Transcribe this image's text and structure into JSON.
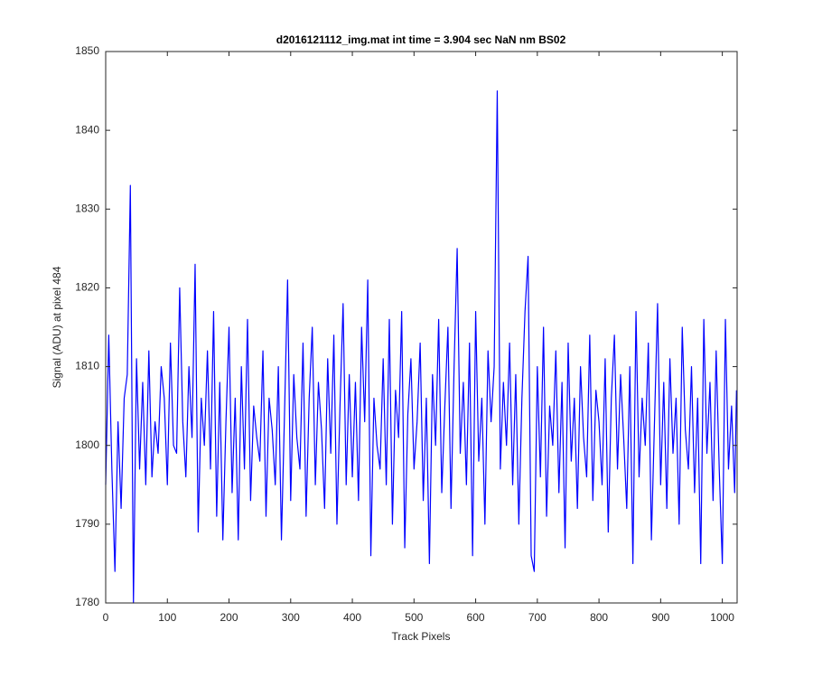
{
  "chart_data": {
    "type": "line",
    "title": "d2016121112_img.mat int time = 3.904 sec  NaN nm BS02",
    "xlabel": "Track Pixels",
    "ylabel": "Signal (ADU) at pixel 484",
    "xlim": [
      0,
      1024
    ],
    "ylim": [
      1780,
      1850
    ],
    "xticks": [
      0,
      100,
      200,
      300,
      400,
      500,
      600,
      700,
      800,
      900,
      1000
    ],
    "yticks": [
      1780,
      1790,
      1800,
      1810,
      1820,
      1830,
      1840,
      1850
    ],
    "x": [
      0,
      5,
      10,
      15,
      20,
      25,
      30,
      35,
      40,
      45,
      50,
      55,
      60,
      65,
      70,
      75,
      80,
      85,
      90,
      95,
      100,
      105,
      110,
      115,
      120,
      125,
      130,
      135,
      140,
      145,
      150,
      155,
      160,
      165,
      170,
      175,
      180,
      185,
      190,
      195,
      200,
      205,
      210,
      215,
      220,
      225,
      230,
      235,
      240,
      245,
      250,
      255,
      260,
      265,
      270,
      275,
      280,
      285,
      290,
      295,
      300,
      305,
      310,
      315,
      320,
      325,
      330,
      335,
      340,
      345,
      350,
      355,
      360,
      365,
      370,
      375,
      380,
      385,
      390,
      395,
      400,
      405,
      410,
      415,
      420,
      425,
      430,
      435,
      440,
      445,
      450,
      455,
      460,
      465,
      470,
      475,
      480,
      485,
      490,
      495,
      500,
      505,
      510,
      515,
      520,
      525,
      530,
      535,
      540,
      545,
      550,
      555,
      560,
      565,
      570,
      575,
      580,
      585,
      590,
      595,
      600,
      605,
      610,
      615,
      620,
      625,
      630,
      635,
      640,
      645,
      650,
      655,
      660,
      665,
      670,
      675,
      680,
      685,
      690,
      695,
      700,
      705,
      710,
      715,
      720,
      725,
      730,
      735,
      740,
      745,
      750,
      755,
      760,
      765,
      770,
      775,
      780,
      785,
      790,
      795,
      800,
      805,
      810,
      815,
      820,
      825,
      830,
      835,
      840,
      845,
      850,
      855,
      860,
      865,
      870,
      875,
      880,
      885,
      890,
      895,
      900,
      905,
      910,
      915,
      920,
      925,
      930,
      935,
      940,
      945,
      950,
      955,
      960,
      965,
      970,
      975,
      980,
      985,
      990,
      995,
      1000,
      1005,
      1010,
      1015,
      1020,
      1023
    ],
    "series": [
      {
        "name": "signal",
        "color": "#0000ff",
        "values": [
          1795,
          1814,
          1797,
          1784,
          1803,
          1792,
          1806,
          1809,
          1833,
          1780,
          1811,
          1797,
          1808,
          1795,
          1812,
          1796,
          1803,
          1799,
          1810,
          1806,
          1795,
          1813,
          1800,
          1799,
          1820,
          1803,
          1796,
          1810,
          1801,
          1823,
          1789,
          1806,
          1800,
          1812,
          1797,
          1817,
          1791,
          1808,
          1788,
          1803,
          1815,
          1794,
          1806,
          1788,
          1810,
          1797,
          1816,
          1793,
          1805,
          1801,
          1798,
          1812,
          1791,
          1806,
          1802,
          1795,
          1810,
          1788,
          1804,
          1821,
          1793,
          1809,
          1801,
          1797,
          1813,
          1791,
          1806,
          1815,
          1795,
          1808,
          1802,
          1792,
          1811,
          1799,
          1814,
          1790,
          1805,
          1818,
          1795,
          1809,
          1796,
          1808,
          1793,
          1815,
          1803,
          1821,
          1786,
          1806,
          1800,
          1797,
          1811,
          1795,
          1816,
          1790,
          1807,
          1801,
          1817,
          1787,
          1804,
          1811,
          1797,
          1803,
          1813,
          1793,
          1806,
          1785,
          1809,
          1800,
          1816,
          1794,
          1805,
          1815,
          1792,
          1810,
          1825,
          1799,
          1808,
          1795,
          1813,
          1786,
          1817,
          1798,
          1806,
          1790,
          1812,
          1803,
          1810,
          1845,
          1797,
          1808,
          1800,
          1813,
          1795,
          1809,
          1790,
          1806,
          1817,
          1824,
          1786,
          1784,
          1810,
          1796,
          1815,
          1791,
          1805,
          1800,
          1812,
          1794,
          1808,
          1787,
          1813,
          1798,
          1806,
          1792,
          1810,
          1801,
          1796,
          1814,
          1793,
          1807,
          1803,
          1795,
          1811,
          1789,
          1806,
          1814,
          1797,
          1809,
          1801,
          1792,
          1810,
          1785,
          1817,
          1796,
          1806,
          1800,
          1813,
          1788,
          1803,
          1818,
          1795,
          1808,
          1792,
          1811,
          1799,
          1806,
          1790,
          1815,
          1802,
          1797,
          1810,
          1794,
          1806,
          1785,
          1816,
          1799,
          1808,
          1793,
          1812,
          1797,
          1785,
          1816,
          1797,
          1805,
          1794,
          1807
        ]
      }
    ]
  }
}
